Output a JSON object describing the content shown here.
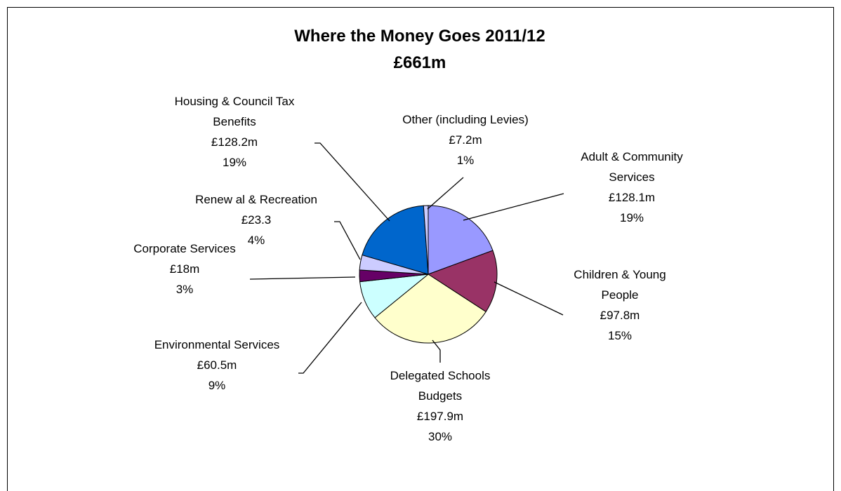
{
  "chart_data": {
    "type": "pie",
    "title": "Where the Money Goes 2011/12",
    "subtitle": "£661m",
    "slices": [
      {
        "lines": [
          "Adult & Community",
          "Services",
          "£128.1m",
          "19%"
        ],
        "value": 128.1,
        "percent": 19,
        "color": "#9999ff"
      },
      {
        "lines": [
          "Children & Young",
          "People",
          "£97.8m",
          "15%"
        ],
        "value": 97.8,
        "percent": 15,
        "color": "#993366"
      },
      {
        "lines": [
          "Delegated Schools",
          "Budgets",
          "£197.9m",
          "30%"
        ],
        "value": 197.9,
        "percent": 30,
        "color": "#ffffcc"
      },
      {
        "lines": [
          "Environmental Services",
          "£60.5m",
          "9%"
        ],
        "value": 60.5,
        "percent": 9,
        "color": "#ccffff"
      },
      {
        "lines": [
          "Corporate Services",
          "£18m",
          "3%"
        ],
        "value": 18,
        "percent": 3,
        "color": "#660066"
      },
      {
        "lines": [
          "Renew al & Recreation",
          "£23.3",
          "4%"
        ],
        "value": 23.3,
        "percent": 4,
        "color": "#ccccff"
      },
      {
        "lines": [
          "Housing & Council Tax",
          "Benefits",
          "£128.2m",
          "19%"
        ],
        "value": 128.2,
        "percent": 19,
        "color": "#0066cc"
      },
      {
        "lines": [
          "Other (including Levies)",
          "£7.2m",
          "1%"
        ],
        "value": 7.2,
        "percent": 1,
        "color": "#ccccff"
      }
    ]
  }
}
